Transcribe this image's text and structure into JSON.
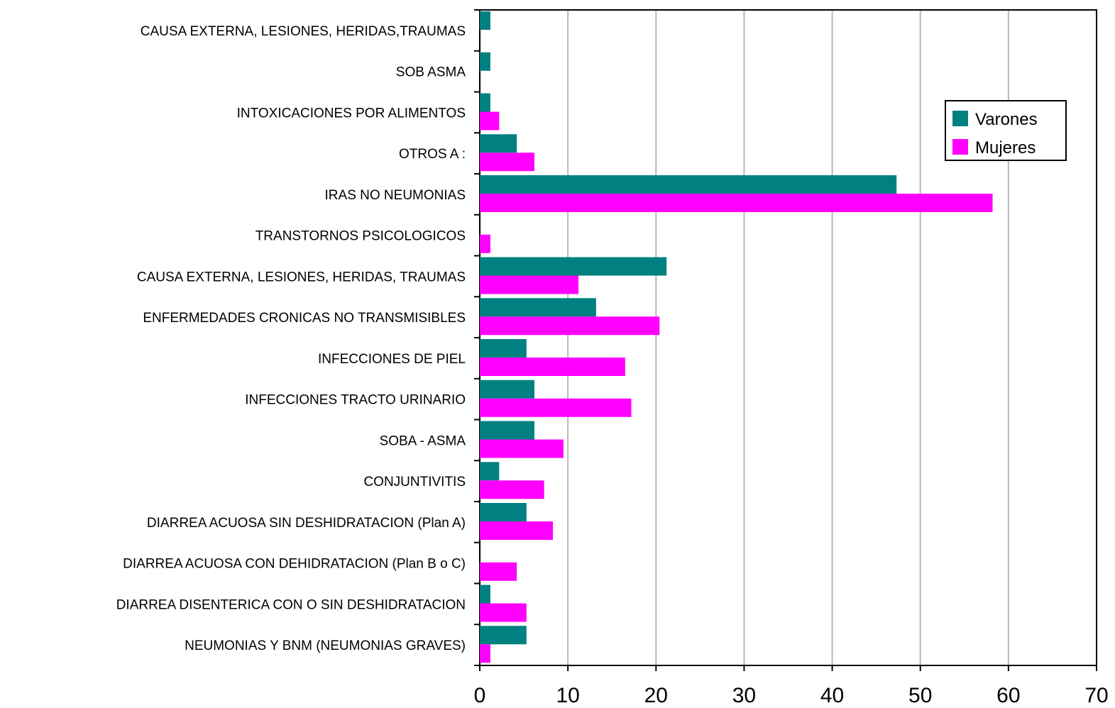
{
  "chart_data": {
    "type": "bar",
    "orientation": "horizontal",
    "categories": [
      "CAUSA EXTERNA, LESIONES, HERIDAS,TRAUMAS",
      "SOB ASMA",
      "INTOXICACIONES POR ALIMENTOS",
      "OTROS A :",
      "IRAS NO NEUMONIAS",
      "TRANSTORNOS PSICOLOGICOS",
      "CAUSA EXTERNA, LESIONES, HERIDAS, TRAUMAS",
      "ENFERMEDADES CRONICAS NO TRANSMISIBLES",
      "INFECCIONES DE PIEL",
      "INFECCIONES TRACTO URINARIO",
      "SOBA - ASMA",
      "CONJUNTIVITIS",
      "DIARREA ACUOSA SIN DESHIDRATACION (Plan A)",
      "DIARREA ACUOSA CON DEHIDRATACION (Plan B o C)",
      "DIARREA DISENTERICA CON O SIN DESHIDRATACION",
      "NEUMONIAS Y BNM (NEUMONIAS GRAVES)"
    ],
    "series": [
      {
        "name": "Varones",
        "color": "#008080",
        "values": [
          1.2,
          1.2,
          1.2,
          4.2,
          47.3,
          0,
          21.2,
          13.2,
          5.3,
          6.2,
          6.2,
          2.2,
          5.3,
          0,
          1.2,
          5.3
        ]
      },
      {
        "name": "Mujeres",
        "color": "#ff00ff",
        "values": [
          0,
          0,
          2.2,
          6.2,
          58.2,
          1.2,
          11.2,
          20.4,
          16.5,
          17.2,
          9.5,
          7.3,
          8.3,
          4.2,
          5.3,
          1.2
        ]
      }
    ],
    "xlim": [
      0,
      70
    ],
    "xticks": [
      "0",
      "10",
      "20",
      "30",
      "40",
      "50",
      "60",
      "70"
    ],
    "grid": true,
    "legend_position": "top-right"
  }
}
